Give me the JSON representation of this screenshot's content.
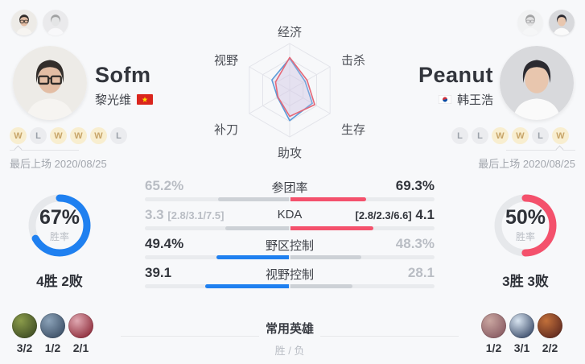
{
  "colors": {
    "blue": "#1f80f0",
    "red": "#f4516c",
    "bar_track": "#e9ebee",
    "bar_gray": "#cdd1d6",
    "win_badge_bg": "#f8eed0",
    "win_badge_text": "#c7a468",
    "loss_badge_bg": "#ebecef",
    "loss_badge_text": "#9aa0a8",
    "dark_text": "#32353c",
    "gray_text": "#b9bdc4",
    "radar_grid": "#e3e4ea",
    "radar_fill": "#cfc5e2"
  },
  "players": {
    "left": {
      "name": "Sofm",
      "real_name": "黎光维",
      "flag": "vietnam-flag",
      "mini_avatars": [
        "active",
        "inactive"
      ],
      "recent_results": [
        "W",
        "L",
        "W",
        "W",
        "W",
        "L"
      ],
      "last_played_label": "最后上场",
      "last_played_date": "2020/08/25",
      "win_rate_pct": 67,
      "win_rate_text": "67%",
      "win_rate_label": "胜率",
      "record": "4胜 2败",
      "champions": [
        {
          "name": "champion-1",
          "score": "3/2",
          "color_a": "#8a9b4a",
          "color_b": "#2f3c1c"
        },
        {
          "name": "champion-2",
          "score": "1/2",
          "color_a": "#8ba2b8",
          "color_b": "#2c3e55"
        },
        {
          "name": "champion-3",
          "score": "2/1",
          "color_a": "#e0a9b2",
          "color_b": "#7c1020"
        }
      ]
    },
    "right": {
      "name": "Peanut",
      "real_name": "韩王浩",
      "flag": "korea-flag",
      "mini_avatars": [
        "inactive",
        "active"
      ],
      "recent_results": [
        "L",
        "L",
        "W",
        "W",
        "L",
        "W"
      ],
      "last_played_label": "最后上场",
      "last_played_date": "2020/08/25",
      "win_rate_pct": 50,
      "win_rate_text": "50%",
      "win_rate_label": "胜率",
      "record": "3胜 3败",
      "champions": [
        {
          "name": "champion-4",
          "score": "1/2",
          "color_a": "#c9a6a0",
          "color_b": "#7a4a55"
        },
        {
          "name": "champion-5",
          "score": "3/1",
          "color_a": "#d8e4f0",
          "color_b": "#1a2c4e"
        },
        {
          "name": "champion-6",
          "score": "2/2",
          "color_a": "#c2703a",
          "color_b": "#4a1a1a"
        }
      ]
    }
  },
  "radar": {
    "axes": [
      "经济",
      "击杀",
      "生存",
      "助攻",
      "补刀",
      "视野"
    ],
    "max": 1,
    "series": [
      {
        "name": "Sofm",
        "color": "#5b9bd8",
        "values": [
          0.68,
          0.38,
          0.56,
          0.65,
          0.3,
          0.44
        ]
      },
      {
        "name": "Peanut",
        "color": "#e56878",
        "values": [
          0.7,
          0.43,
          0.62,
          0.56,
          0.29,
          0.35
        ]
      }
    ]
  },
  "stats": {
    "rows": [
      {
        "key": "team-fight-rate",
        "label": "参团率",
        "left_value": "65.2%",
        "left_detail": "",
        "right_detail": "",
        "right_value": "69.3%",
        "winner": "right",
        "left_bar_pct": 49,
        "right_bar_pct": 52
      },
      {
        "key": "kda",
        "label": "KDA",
        "left_value": "3.3",
        "left_detail": "[2.8/3.1/7.5]",
        "right_detail": "[2.8/2.3/6.6]",
        "right_value": "4.1",
        "winner": "right",
        "left_bar_pct": 44,
        "right_bar_pct": 57
      },
      {
        "key": "jungle-control",
        "label": "野区控制",
        "left_value": "49.4%",
        "left_detail": "",
        "right_detail": "",
        "right_value": "48.3%",
        "winner": "left",
        "left_bar_pct": 50,
        "right_bar_pct": 49
      },
      {
        "key": "vision-control",
        "label": "视野控制",
        "left_value": "39.1",
        "left_detail": "",
        "right_detail": "",
        "right_value": "28.1",
        "winner": "left",
        "left_bar_pct": 58,
        "right_bar_pct": 43
      }
    ]
  },
  "bottom": {
    "title": "常用英雄",
    "subtitle": "胜 / 负"
  },
  "avatars": {
    "left": {
      "bg": "#edebe7",
      "hair": "#332e2b",
      "skin": "#e3bda4",
      "shirt": "#f6f4f1",
      "glasses": true
    },
    "right": {
      "bg": "#d8d9dc",
      "hair": "#2b2a30",
      "skin": "#e8c6ae",
      "shirt": "#fafafa",
      "glasses": false
    }
  }
}
